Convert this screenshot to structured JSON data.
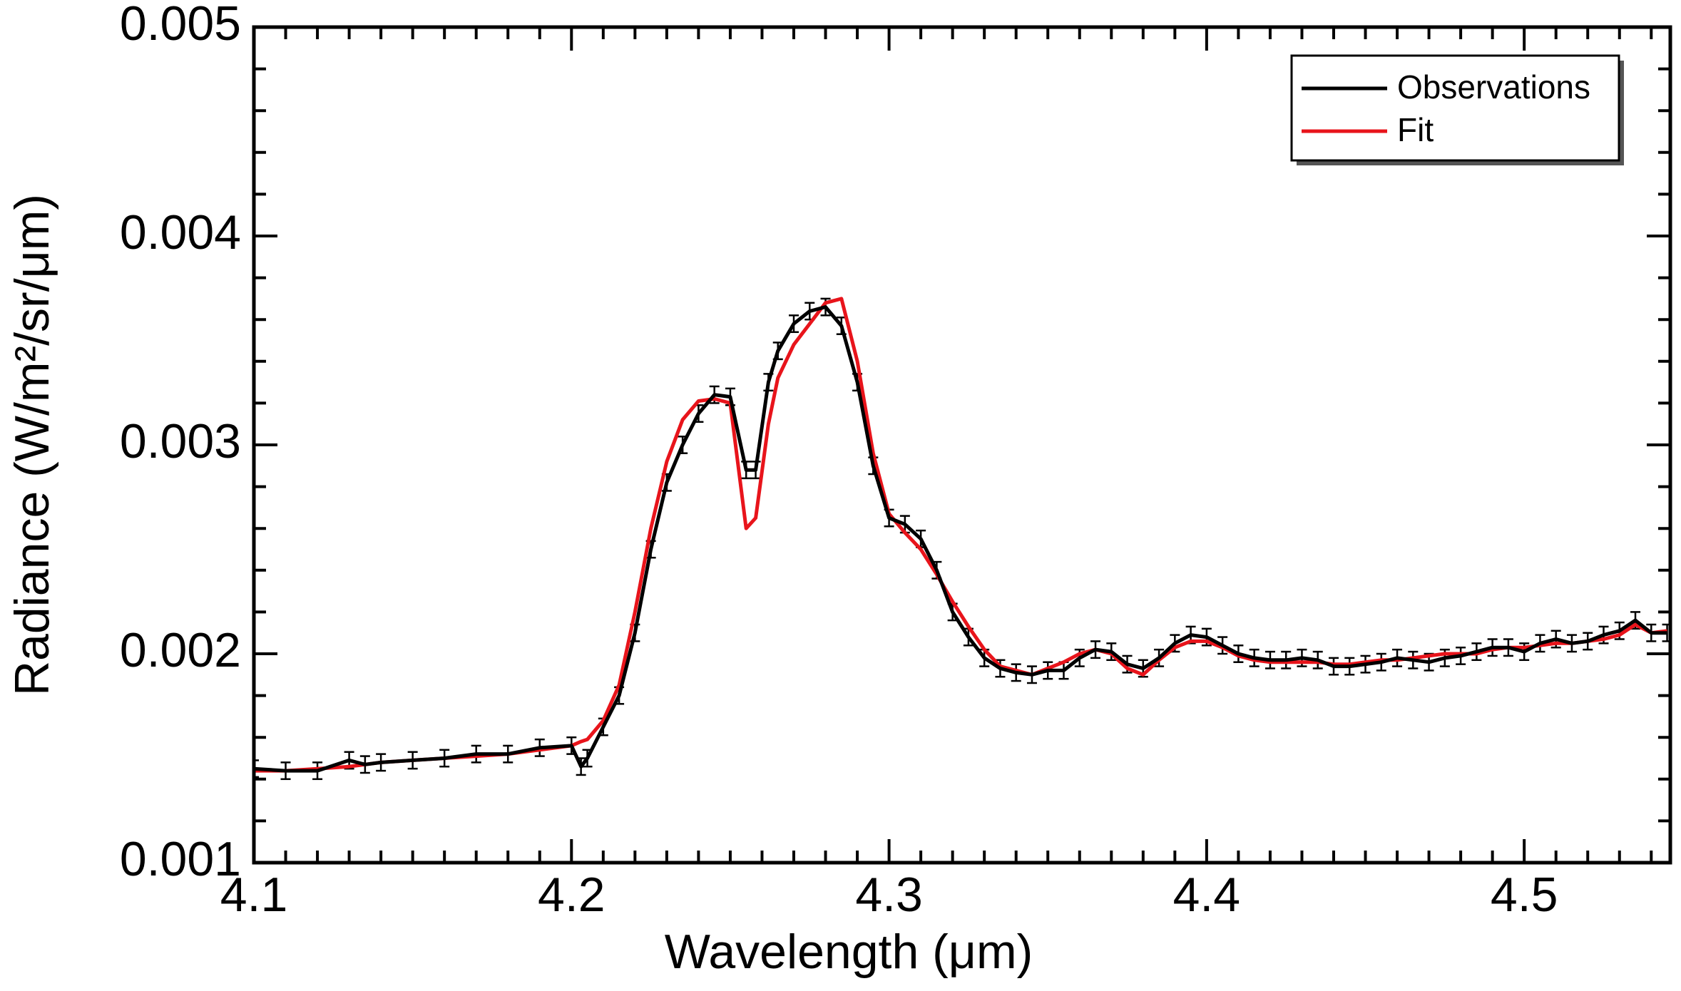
{
  "chart_data": {
    "type": "line",
    "xlabel": "Wavelength (μm)",
    "ylabel": "Radiance (W/m²/sr/μm)",
    "x": [
      4.1,
      4.11,
      4.12,
      4.13,
      4.135,
      4.14,
      4.15,
      4.16,
      4.17,
      4.18,
      4.19,
      4.2,
      4.203,
      4.205,
      4.21,
      4.215,
      4.22,
      4.225,
      4.23,
      4.235,
      4.24,
      4.245,
      4.25,
      4.255,
      4.258,
      4.262,
      4.265,
      4.27,
      4.275,
      4.28,
      4.285,
      4.29,
      4.295,
      4.3,
      4.305,
      4.31,
      4.315,
      4.32,
      4.325,
      4.33,
      4.335,
      4.34,
      4.345,
      4.35,
      4.355,
      4.36,
      4.365,
      4.37,
      4.375,
      4.38,
      4.385,
      4.39,
      4.395,
      4.4,
      4.405,
      4.41,
      4.415,
      4.42,
      4.425,
      4.43,
      4.435,
      4.44,
      4.445,
      4.45,
      4.455,
      4.46,
      4.465,
      4.47,
      4.475,
      4.48,
      4.485,
      4.49,
      4.495,
      4.5,
      4.505,
      4.51,
      4.515,
      4.52,
      4.525,
      4.53,
      4.535,
      4.54,
      4.545
    ],
    "series": [
      {
        "name": "Observations",
        "color": "#000000",
        "values": [
          0.00145,
          0.00144,
          0.00144,
          0.00149,
          0.00147,
          0.00148,
          0.00149,
          0.0015,
          0.00152,
          0.00152,
          0.00155,
          0.00156,
          0.00146,
          0.0015,
          0.00165,
          0.0018,
          0.0021,
          0.0025,
          0.00282,
          0.003,
          0.00315,
          0.00324,
          0.00323,
          0.00288,
          0.00288,
          0.0033,
          0.00345,
          0.00358,
          0.00364,
          0.00366,
          0.00357,
          0.0033,
          0.0029,
          0.00265,
          0.00262,
          0.00255,
          0.0024,
          0.0022,
          0.00208,
          0.00198,
          0.00193,
          0.00191,
          0.0019,
          0.00192,
          0.00192,
          0.00198,
          0.00202,
          0.00201,
          0.00195,
          0.00193,
          0.00198,
          0.00205,
          0.00209,
          0.00208,
          0.00204,
          0.002,
          0.00198,
          0.00197,
          0.00197,
          0.00198,
          0.00197,
          0.00194,
          0.00194,
          0.00195,
          0.00196,
          0.00198,
          0.00197,
          0.00196,
          0.00198,
          0.00199,
          0.00201,
          0.00203,
          0.00203,
          0.00201,
          0.00205,
          0.00207,
          0.00205,
          0.00206,
          0.00209,
          0.00211,
          0.00216,
          0.0021,
          0.0021
        ],
        "errors": [
          4e-05,
          4e-05,
          4e-05,
          4e-05,
          4e-05,
          4e-05,
          4e-05,
          4e-05,
          4e-05,
          4e-05,
          4e-05,
          4e-05,
          4e-05,
          4e-05,
          4e-05,
          4e-05,
          4e-05,
          4e-05,
          4e-05,
          4e-05,
          4e-05,
          4e-05,
          4e-05,
          4e-05,
          4e-05,
          4e-05,
          4e-05,
          4e-05,
          4e-05,
          4e-05,
          4e-05,
          4e-05,
          4e-05,
          4e-05,
          4e-05,
          4e-05,
          4e-05,
          4e-05,
          4e-05,
          4e-05,
          4e-05,
          4e-05,
          4e-05,
          4e-05,
          4e-05,
          4e-05,
          4e-05,
          4e-05,
          4e-05,
          4e-05,
          4e-05,
          4e-05,
          4e-05,
          4e-05,
          4e-05,
          4e-05,
          4e-05,
          4e-05,
          4e-05,
          4e-05,
          4e-05,
          4e-05,
          4e-05,
          4e-05,
          4e-05,
          4e-05,
          4e-05,
          4e-05,
          4e-05,
          4e-05,
          4e-05,
          4e-05,
          4e-05,
          4e-05,
          4e-05,
          4e-05,
          4e-05,
          4e-05,
          4e-05,
          4e-05,
          4e-05,
          4e-05,
          4e-05
        ]
      },
      {
        "name": "Fit",
        "color": "#e8141b",
        "values": [
          0.00144,
          0.00144,
          0.00145,
          0.00146,
          0.00147,
          0.00148,
          0.00149,
          0.0015,
          0.00151,
          0.00152,
          0.00154,
          0.00156,
          0.00158,
          0.00159,
          0.00168,
          0.00185,
          0.0022,
          0.0026,
          0.00292,
          0.00312,
          0.00321,
          0.00322,
          0.0032,
          0.0026,
          0.00265,
          0.0031,
          0.00332,
          0.00348,
          0.00358,
          0.00368,
          0.0037,
          0.0034,
          0.00296,
          0.00267,
          0.00258,
          0.0025,
          0.00238,
          0.00225,
          0.00213,
          0.00202,
          0.00194,
          0.00192,
          0.0019,
          0.00193,
          0.00196,
          0.002,
          0.00202,
          0.002,
          0.00193,
          0.0019,
          0.00197,
          0.00203,
          0.00206,
          0.00206,
          0.00203,
          0.00199,
          0.00197,
          0.00196,
          0.00196,
          0.00196,
          0.00196,
          0.00195,
          0.00195,
          0.00196,
          0.00197,
          0.00197,
          0.00198,
          0.00199,
          0.002,
          0.002,
          0.002,
          0.00202,
          0.00203,
          0.00203,
          0.00204,
          0.00205,
          0.00205,
          0.00206,
          0.00207,
          0.00209,
          0.00214,
          0.0021,
          0.00211
        ]
      }
    ],
    "xlim": [
      4.1,
      4.546
    ],
    "ylim": [
      0.001,
      0.005
    ],
    "xticks": [
      4.1,
      4.2,
      4.3,
      4.4,
      4.5
    ],
    "yticks": [
      0.001,
      0.002,
      0.003,
      0.004,
      0.005
    ],
    "xminorticks": [
      4.11,
      4.12,
      4.13,
      4.14,
      4.15,
      4.16,
      4.17,
      4.18,
      4.19,
      4.21,
      4.22,
      4.23,
      4.24,
      4.25,
      4.26,
      4.27,
      4.28,
      4.29,
      4.31,
      4.32,
      4.33,
      4.34,
      4.35,
      4.36,
      4.37,
      4.38,
      4.39,
      4.41,
      4.42,
      4.43,
      4.44,
      4.45,
      4.46,
      4.47,
      4.48,
      4.49,
      4.51,
      4.52,
      4.53,
      4.54
    ],
    "yminorticks": [
      0.0012,
      0.0014,
      0.0016,
      0.0018,
      0.0022,
      0.0024,
      0.0026,
      0.0028,
      0.0032,
      0.0034,
      0.0036,
      0.0038,
      0.0042,
      0.0044,
      0.0046,
      0.0048
    ],
    "legend": "upper right"
  }
}
